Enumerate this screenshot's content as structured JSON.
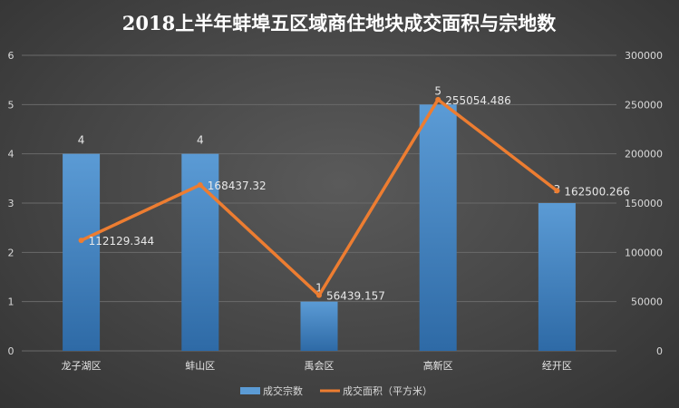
{
  "chart_data": {
    "type": "bar+line",
    "title": "2018上半年蚌埠五区域商住地块成交面积与宗地数",
    "categories": [
      "龙子湖区",
      "蚌山区",
      "禹会区",
      "高新区",
      "经开区"
    ],
    "series": [
      {
        "name": "成交宗数",
        "type": "bar",
        "axis": "left",
        "values": [
          4,
          4,
          1,
          5,
          3
        ],
        "labels": [
          "4",
          "4",
          "1",
          "5",
          "3"
        ],
        "color": "#5b9bd5"
      },
      {
        "name": "成交面积（平方米）",
        "type": "line",
        "axis": "right",
        "values": [
          112129.344,
          168437.32,
          56439.157,
          255054.486,
          162500.266
        ],
        "labels": [
          "112129.344",
          "168437.32",
          "56439.157",
          "255054.486",
          "162500.266"
        ],
        "color": "#ed7d31"
      }
    ],
    "y_left": {
      "min": 0,
      "max": 6,
      "ticks": [
        "0",
        "1",
        "2",
        "3",
        "4",
        "5",
        "6"
      ]
    },
    "y_right": {
      "min": 0,
      "max": 300000,
      "ticks": [
        "0",
        "50000",
        "100000",
        "150000",
        "200000",
        "250000",
        "300000"
      ]
    },
    "grid": true,
    "legend_position": "bottom"
  }
}
